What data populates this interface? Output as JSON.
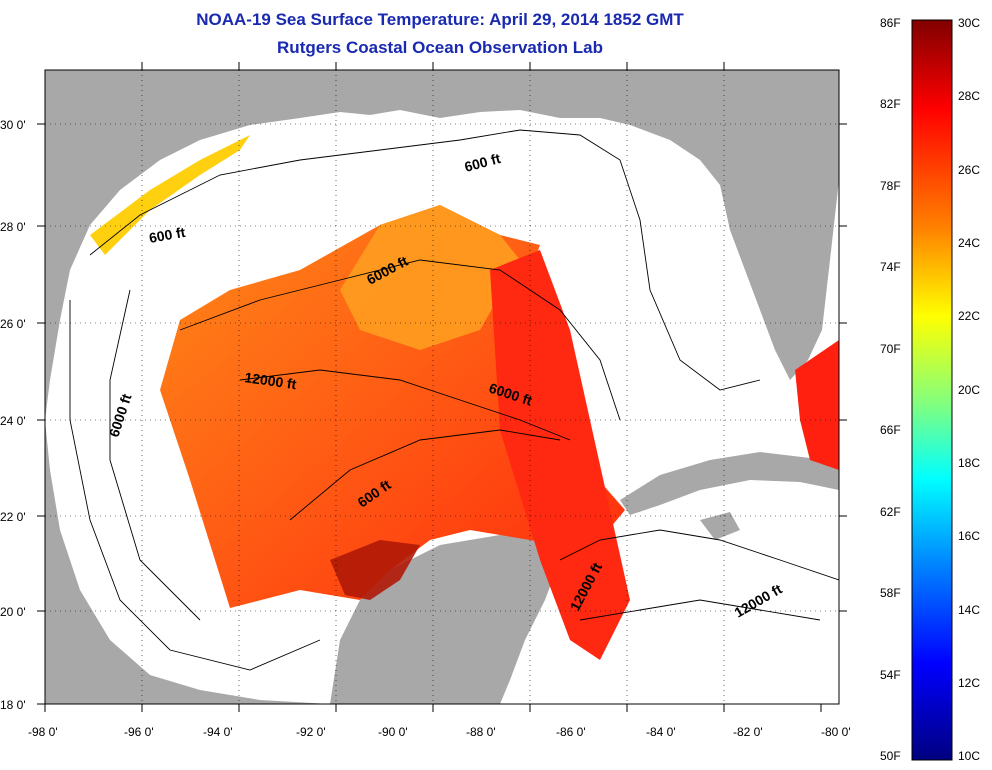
{
  "title": {
    "line1": "NOAA-19 Sea Surface Temperature:  April 29, 2014 1852 GMT",
    "line2": "Rutgers Coastal Ocean Observation Lab"
  },
  "map": {
    "lon_ticks": [
      "-98 0'",
      "-96 0'",
      "-94 0'",
      "-92 0'",
      "-90 0'",
      "-88 0'",
      "-86 0'",
      "-84 0'",
      "-82 0'",
      "-80 0'"
    ],
    "lat_ticks": [
      "30 0'",
      "28 0'",
      "26 0'",
      "24 0'",
      "22 0'",
      "20 0'",
      "18 0'"
    ],
    "contour_labels": [
      "600 ft",
      "600 ft",
      "6000 ft",
      "6000 ft",
      "12000 ft",
      "6000 ft",
      "600 ft",
      "12000 ft",
      "12000 ft"
    ],
    "colors": {
      "land": "#a8a8a8",
      "cloud": "#ffffff",
      "sst_warm": "#ff3a10",
      "sst_mid": "#ff7a18",
      "sst_cool": "#ffb020",
      "sst_hot": "#a01010"
    }
  },
  "colorbar": {
    "fahrenheit": [
      "86F",
      "82F",
      "78F",
      "74F",
      "70F",
      "66F",
      "62F",
      "58F",
      "54F",
      "50F"
    ],
    "celsius": [
      "30C",
      "28C",
      "26C",
      "24C",
      "22C",
      "20C",
      "18C",
      "16C",
      "14C",
      "12C",
      "10C"
    ],
    "gradient": [
      "#800000",
      "#ff0000",
      "#ff8000",
      "#ffff00",
      "#80ff80",
      "#00ffff",
      "#0080ff",
      "#0000ff",
      "#000080"
    ]
  }
}
